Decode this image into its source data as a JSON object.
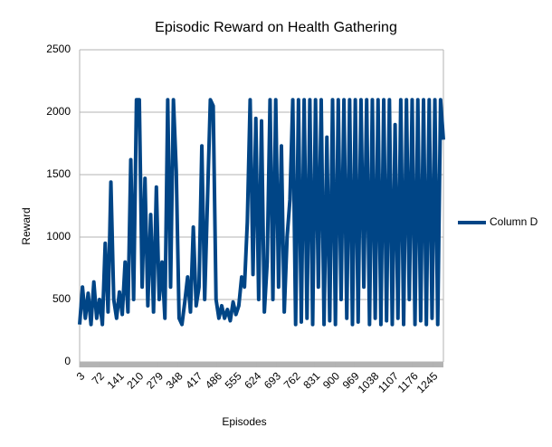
{
  "chart_data": {
    "type": "line",
    "title": "Episodic Reward on Health  Gathering",
    "x_label": "Episodes",
    "y_label": "Reward",
    "x": [
      3,
      13,
      23,
      33,
      43,
      53,
      63,
      73,
      83,
      93,
      103,
      113,
      123,
      133,
      143,
      153,
      163,
      173,
      183,
      193,
      203,
      213,
      223,
      233,
      243,
      253,
      263,
      273,
      283,
      293,
      303,
      313,
      323,
      333,
      343,
      353,
      363,
      373,
      383,
      393,
      403,
      413,
      423,
      433,
      443,
      453,
      463,
      473,
      483,
      493,
      503,
      513,
      523,
      533,
      543,
      553,
      563,
      573,
      583,
      593,
      603,
      613,
      623,
      633,
      643,
      653,
      663,
      673,
      683,
      693,
      703,
      713,
      723,
      733,
      743,
      753,
      763,
      773,
      783,
      793,
      803,
      813,
      823,
      833,
      843,
      853,
      863,
      873,
      883,
      893,
      903,
      913,
      923,
      933,
      943,
      953,
      963,
      973,
      983,
      993,
      1003,
      1013,
      1023,
      1033,
      1043,
      1053,
      1063,
      1073,
      1083,
      1093,
      1103,
      1113,
      1123,
      1133,
      1143,
      1153,
      1163,
      1173,
      1183,
      1193,
      1203,
      1213,
      1223,
      1233,
      1243,
      1253,
      1263,
      1273,
      1283
    ],
    "series": [
      {
        "name": "Column D",
        "color": "#004586",
        "values": [
          300,
          600,
          350,
          550,
          300,
          640,
          350,
          500,
          300,
          950,
          400,
          1440,
          500,
          350,
          560,
          380,
          800,
          400,
          1620,
          500,
          2100,
          2100,
          600,
          1470,
          450,
          1180,
          400,
          1400,
          500,
          800,
          350,
          2100,
          600,
          2100,
          1530,
          350,
          300,
          480,
          680,
          400,
          1080,
          450,
          600,
          1730,
          500,
          1310,
          2100,
          2050,
          500,
          350,
          450,
          350,
          420,
          330,
          480,
          380,
          450,
          680,
          600,
          1120,
          2100,
          700,
          1950,
          500,
          1930,
          400,
          800,
          2100,
          500,
          2100,
          600,
          1730,
          400,
          1000,
          1300,
          2100,
          300,
          2100,
          320,
          2100,
          350,
          2100,
          300,
          2100,
          600,
          2100,
          300,
          1800,
          330,
          2100,
          300,
          2100,
          500,
          2100,
          350,
          2100,
          300,
          2100,
          320,
          2100,
          600,
          2100,
          300,
          2100,
          350,
          2100,
          300,
          2100,
          330,
          2100,
          300,
          1900,
          350,
          2100,
          300,
          2100,
          500,
          2100,
          300,
          2100,
          330,
          2100,
          300,
          2100,
          350,
          2100,
          300,
          2100,
          1780
        ]
      }
    ],
    "xlim": [
      3,
      1283
    ],
    "xticks": [
      3,
      72,
      141,
      210,
      279,
      348,
      417,
      486,
      555,
      624,
      693,
      762,
      831,
      900,
      969,
      1038,
      1107,
      1176,
      1245
    ],
    "ylim": [
      0,
      2500
    ],
    "yticks": [
      0,
      500,
      1000,
      1500,
      2000,
      2500
    ],
    "grid": true,
    "legend": "right"
  }
}
